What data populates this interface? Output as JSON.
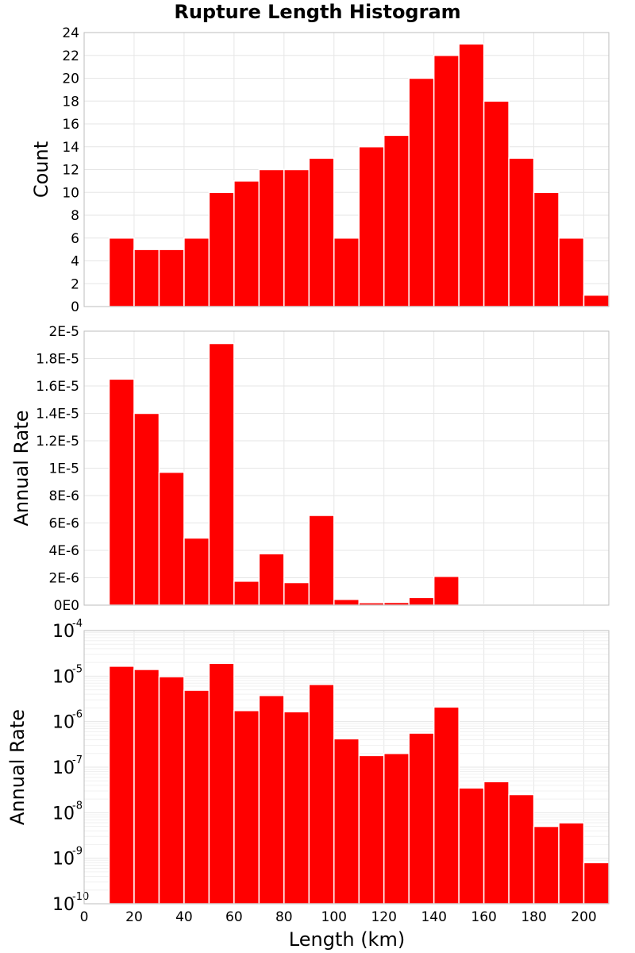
{
  "chart_data": {
    "title": "Rupture Length Histogram",
    "xlabel": "Length (km)",
    "xlim": [
      0,
      210
    ],
    "x_ticks": [
      "0",
      "20",
      "40",
      "60",
      "80",
      "100",
      "120",
      "140",
      "160",
      "180",
      "200"
    ],
    "bin_width": 10,
    "bar_color": "#ff0000",
    "bin_centers": [
      15,
      25,
      35,
      45,
      55,
      65,
      75,
      85,
      95,
      105,
      115,
      125,
      135,
      145,
      155,
      165,
      175,
      185,
      195,
      205
    ],
    "panels": [
      {
        "type": "bar",
        "ylabel": "Count",
        "yscale": "linear",
        "ylim": [
          0,
          24
        ],
        "y_ticks": [
          "0",
          "2",
          "4",
          "6",
          "8",
          "10",
          "12",
          "14",
          "16",
          "18",
          "20",
          "22",
          "24"
        ],
        "values": [
          6,
          5,
          5,
          6,
          10,
          11,
          12,
          12,
          13,
          6,
          14,
          15,
          20,
          22,
          23,
          18,
          13,
          10,
          6,
          1
        ]
      },
      {
        "type": "bar",
        "ylabel": "Annual Rate",
        "yscale": "linear",
        "ylim": [
          0,
          2e-05
        ],
        "y_ticks": [
          "0E0",
          "2E-6",
          "4E-6",
          "6E-6",
          "8E-6",
          "1E-5",
          "1.2E-5",
          "1.4E-5",
          "1.6E-5",
          "1.8E-5",
          "2E-5"
        ],
        "values": [
          1.65e-05,
          1.4e-05,
          9.7e-06,
          4.9e-06,
          1.91e-05,
          1.75e-06,
          3.75e-06,
          1.65e-06,
          6.55e-06,
          4.2e-07,
          1.8e-07,
          2e-07,
          5.6e-07,
          2.1e-06,
          3.5e-08,
          4.8e-08,
          2.5e-08,
          5e-09,
          6e-09,
          8e-10
        ]
      },
      {
        "type": "bar",
        "ylabel": "Annual Rate",
        "yscale": "log",
        "ylim": [
          1e-10,
          0.0001
        ],
        "y_ticks": [
          {
            "base": "10",
            "exp": "-4"
          },
          {
            "base": "10",
            "exp": "-5"
          },
          {
            "base": "10",
            "exp": "-6"
          },
          {
            "base": "10",
            "exp": "-7"
          },
          {
            "base": "10",
            "exp": "-8"
          },
          {
            "base": "10",
            "exp": "-9"
          },
          {
            "base": "10",
            "exp": "-10"
          }
        ],
        "values": [
          1.65e-05,
          1.4e-05,
          9.7e-06,
          4.9e-06,
          1.91e-05,
          1.75e-06,
          3.75e-06,
          1.65e-06,
          6.55e-06,
          4.2e-07,
          1.8e-07,
          2e-07,
          5.6e-07,
          2.1e-06,
          3.5e-08,
          4.8e-08,
          2.5e-08,
          5e-09,
          6e-09,
          8e-10
        ]
      }
    ]
  }
}
